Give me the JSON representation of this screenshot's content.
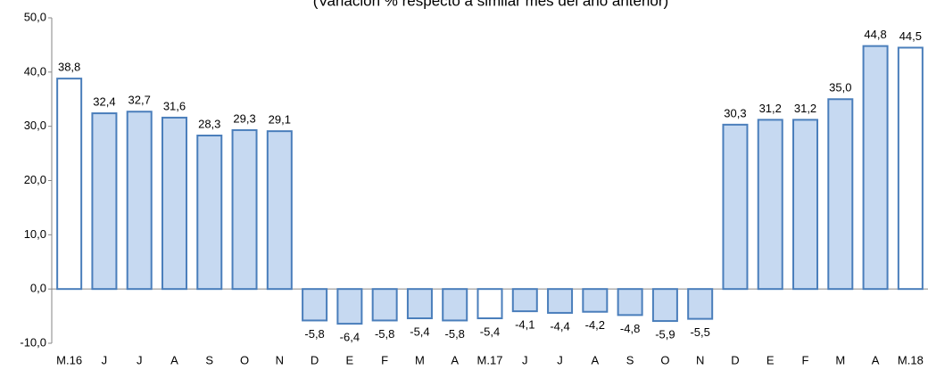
{
  "chart_data": {
    "type": "bar",
    "subtitle": "(Variación % respecto a similar mes del año anterior)",
    "categories": [
      "M.16",
      "J",
      "J",
      "A",
      "S",
      "O",
      "N",
      "D",
      "E",
      "F",
      "M",
      "A",
      "M.17",
      "J",
      "J",
      "A",
      "S",
      "O",
      "N",
      "D",
      "E",
      "F",
      "M",
      "A",
      "M.18"
    ],
    "values": [
      38.8,
      32.4,
      32.7,
      31.6,
      28.3,
      29.3,
      29.1,
      -5.8,
      -6.4,
      -5.8,
      -5.4,
      -5.8,
      -5.4,
      -4.1,
      -4.4,
      -4.2,
      -4.8,
      -5.9,
      -5.5,
      30.3,
      31.2,
      31.2,
      35.0,
      44.8,
      44.5
    ],
    "value_labels": [
      "38,8",
      "32,4",
      "32,7",
      "31,6",
      "28,3",
      "29,3",
      "29,1",
      "-5,8",
      "-6,4",
      "-5,8",
      "-5,4",
      "-5,8",
      "-5,4",
      "-4,1",
      "-4,4",
      "-4,2",
      "-4,8",
      "-5,9",
      "-5,5",
      "30,3",
      "31,2",
      "31,2",
      "35,0",
      "44,8",
      "44,5"
    ],
    "colors": [
      "#ffffff",
      "#c6d9f1",
      "#c6d9f1",
      "#c6d9f1",
      "#c6d9f1",
      "#c6d9f1",
      "#c6d9f1",
      "#c6d9f1",
      "#c6d9f1",
      "#c6d9f1",
      "#c6d9f1",
      "#c6d9f1",
      "#ffffff",
      "#c6d9f1",
      "#c6d9f1",
      "#c6d9f1",
      "#c6d9f1",
      "#c6d9f1",
      "#c6d9f1",
      "#c6d9f1",
      "#c6d9f1",
      "#c6d9f1",
      "#c6d9f1",
      "#c6d9f1",
      "#ffffff"
    ],
    "edge_color": "#4a7ebb",
    "ylim": [
      -10,
      50
    ],
    "yticks": [
      {
        "value": -10,
        "label": "-10,0"
      },
      {
        "value": 0,
        "label": "0,0"
      },
      {
        "value": 10,
        "label": "10,0"
      },
      {
        "value": 20,
        "label": "20,0"
      },
      {
        "value": 30,
        "label": "30,0"
      },
      {
        "value": 40,
        "label": "40,0"
      },
      {
        "value": 50,
        "label": "50,0"
      }
    ],
    "grid": false
  }
}
